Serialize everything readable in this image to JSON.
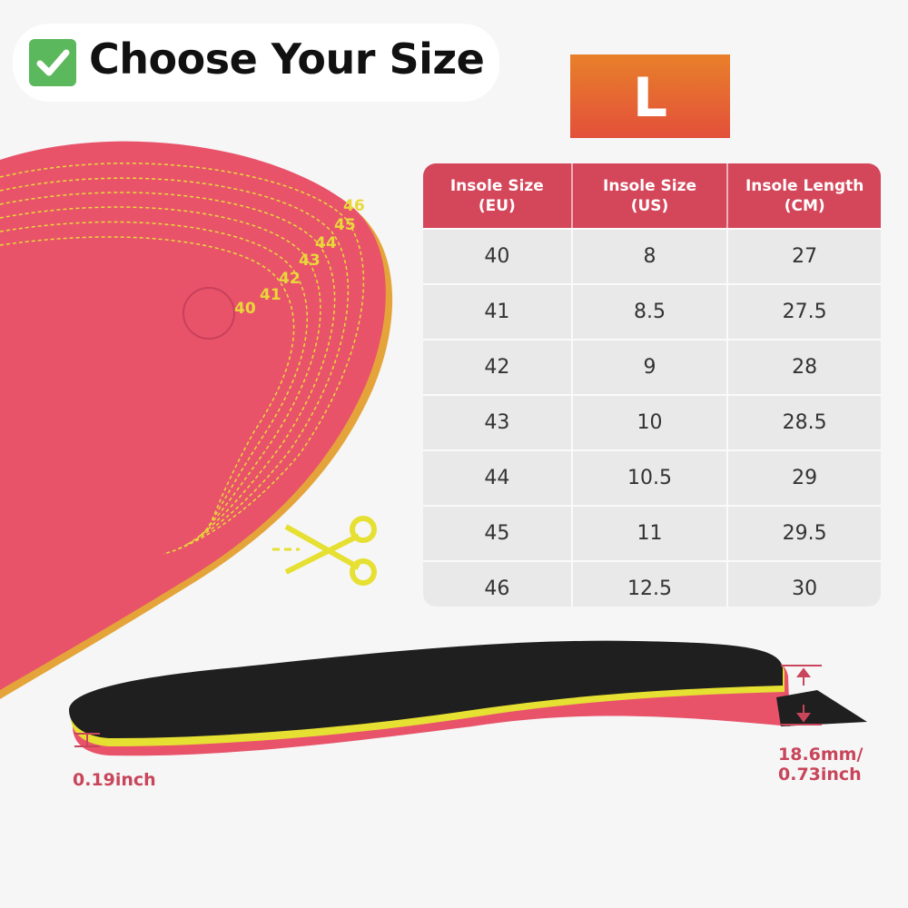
{
  "header": {
    "title": "Choose Your Size",
    "check_icon": "check-mark-icon"
  },
  "size_badge": "L",
  "table": {
    "columns": [
      "Insole Size\n(EU)",
      "Insole Size\n(US)",
      "Insole Length\n(CM)"
    ],
    "rows": [
      [
        "40",
        "8",
        "27"
      ],
      [
        "41",
        "8.5",
        "27.5"
      ],
      [
        "42",
        "9",
        "28"
      ],
      [
        "43",
        "10",
        "28.5"
      ],
      [
        "44",
        "10.5",
        "29"
      ],
      [
        "45",
        "11",
        "29.5"
      ],
      [
        "46",
        "12.5",
        "30"
      ]
    ]
  },
  "trim_lines": [
    "40",
    "41",
    "42",
    "43",
    "44",
    "45",
    "46"
  ],
  "dimensions": {
    "toe_thickness": "0.19inch",
    "heel_thickness": "18.6mm/\n0.73inch"
  },
  "colors": {
    "accent": "#d4465a",
    "badge": "#e8802a",
    "insole_pink": "#e8506a",
    "yellow": "#e6e033"
  }
}
